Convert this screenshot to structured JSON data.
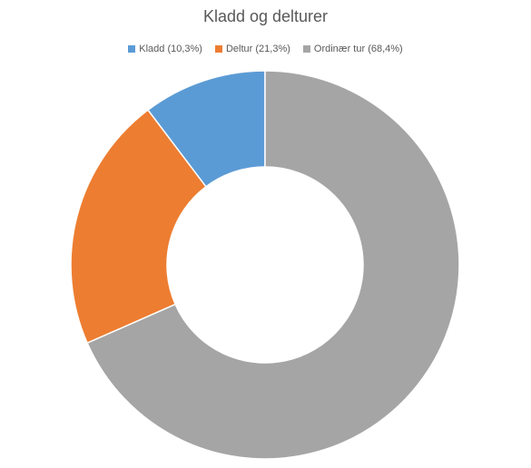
{
  "chart_data": {
    "type": "donut",
    "title": "Kladd og delturer",
    "categories": [
      "Kladd (10,3%)",
      "Deltur (21,3%)",
      "Ordinær tur (68,4%)"
    ],
    "values": [
      10.3,
      21.3,
      68.4
    ],
    "colors": [
      "#5b9bd5",
      "#ed7d31",
      "#a5a5a5"
    ],
    "legend": "top"
  }
}
